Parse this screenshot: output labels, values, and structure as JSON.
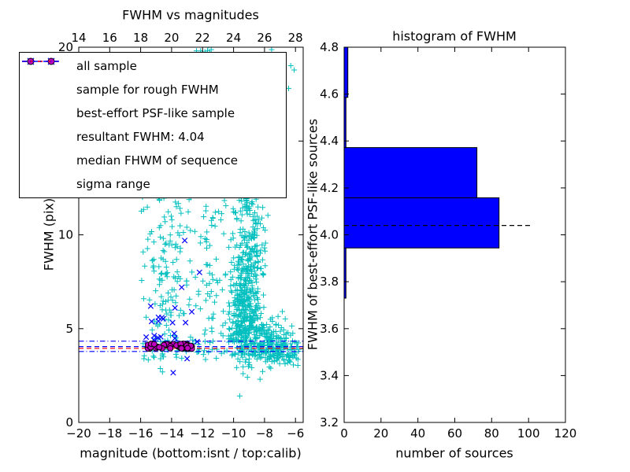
{
  "figure": {
    "background": "#ffffff"
  },
  "chart_data": [
    {
      "type": "scatter",
      "title": "FWHM vs magnitudes",
      "xlabel": "magnitude (bottom:isnt / top:calib)",
      "ylabel": "FWHM (pix)",
      "xlim": [
        -20,
        -5.5
      ],
      "ylim": [
        0,
        20
      ],
      "xticks_bottom": [
        -20,
        -18,
        -16,
        -14,
        -12,
        -10,
        -8,
        -6
      ],
      "xticks_top": [
        14,
        16,
        18,
        20,
        22,
        24,
        26,
        28
      ],
      "top_axis_relation": "calib = isnt + 34",
      "yticks": [
        0,
        5,
        10,
        15,
        20
      ],
      "series": [
        {
          "name": "all sample",
          "marker": "plus",
          "color": "#00bfbf",
          "clusters": [
            {
              "dist": "gauss",
              "cx": -9.3,
              "cy": 6.0,
              "sx": 0.45,
              "sy": 1.4,
              "n": 300
            },
            {
              "dist": "gauss",
              "cx": -9.0,
              "cy": 9.2,
              "sx": 0.55,
              "sy": 1.9,
              "n": 170
            },
            {
              "dist": "gauss",
              "cx": -8.9,
              "cy": 12.2,
              "sx": 0.5,
              "sy": 1.1,
              "n": 55
            },
            {
              "dist": "gauss",
              "cx": -8.2,
              "cy": 4.5,
              "sx": 0.9,
              "sy": 0.7,
              "n": 160
            },
            {
              "dist": "gauss",
              "cx": -7.1,
              "cy": 3.9,
              "sx": 0.8,
              "sy": 0.4,
              "n": 80
            },
            {
              "dist": "uniform",
              "x0": -16.0,
              "x1": -11.3,
              "y0": 3.6,
              "y1": 13.5,
              "n": 110
            },
            {
              "dist": "gauss",
              "cx": -14.35,
              "cy": 7.0,
              "sx": 0.45,
              "sy": 2.2,
              "n": 70
            },
            {
              "dist": "uniform",
              "x0": -13.8,
              "x1": -10.9,
              "y0": 13.5,
              "y1": 19.9,
              "n": 40
            },
            {
              "dist": "gauss",
              "cx": -11.7,
              "cy": 19.4,
              "sx": 0.65,
              "sy": 0.45,
              "n": 18
            },
            {
              "dist": "uniform",
              "x0": -16.1,
              "x1": -6.1,
              "y0": 3.3,
              "y1": 4.5,
              "n": 70
            },
            {
              "dist": "gauss",
              "cx": -10.7,
              "cy": 11.0,
              "sx": 1.1,
              "sy": 2.0,
              "n": 55
            },
            {
              "dist": "uniform",
              "x0": -11.9,
              "x1": -9.9,
              "y0": 4.2,
              "y1": 8.5,
              "n": 45
            },
            {
              "dist": "uniform",
              "x0": -8.6,
              "x1": -6.0,
              "y0": 17.3,
              "y1": 19.9,
              "n": 8
            },
            {
              "dist": "uniform",
              "x0": -7.6,
              "x1": -5.8,
              "y0": 3.0,
              "y1": 4.3,
              "n": 40
            }
          ]
        },
        {
          "name": "sample for rough FWHM",
          "marker": "x",
          "color": "#0000ff",
          "clusters": [
            {
              "dist": "gauss",
              "cx": -14.3,
              "cy": 4.9,
              "sx": 0.8,
              "sy": 0.55,
              "n": 16
            }
          ],
          "points": [
            [
              -13.55,
              12.4
            ],
            [
              -13.15,
              9.7
            ],
            [
              -12.2,
              8.0
            ],
            [
              -13.35,
              7.2
            ],
            [
              -15.35,
              6.2
            ],
            [
              -13.9,
              2.65
            ],
            [
              -12.35,
              4.3
            ],
            [
              -14.85,
              5.6
            ],
            [
              -15.1,
              4.35
            ],
            [
              -12.7,
              5.9
            ],
            [
              -13.0,
              3.4
            ]
          ]
        },
        {
          "name": "best-effort PSF-like sample",
          "marker": "circle",
          "color": "#bf00bf",
          "edge_color": "#000000",
          "clusters": [
            {
              "dist": "uniform",
              "x0": -15.55,
              "x1": -12.6,
              "y0": 3.93,
              "y1": 4.2,
              "n": 48
            }
          ]
        }
      ],
      "hlines": [
        {
          "name": "resultant FWHM",
          "y": 4.04,
          "color": "#0000ff",
          "style": "dashed"
        },
        {
          "name": "median FWHM of sequence",
          "y": 3.95,
          "color": "#ff0000",
          "style": "dashed"
        },
        {
          "name": "sigma range upper",
          "y": 4.33,
          "color": "#0000ff",
          "style": "dashdot"
        },
        {
          "name": "sigma range lower",
          "y": 3.78,
          "color": "#0000ff",
          "style": "dashdot"
        }
      ],
      "legend": [
        {
          "label": "all sample",
          "marker": "plus",
          "color": "#00bfbf"
        },
        {
          "label": "sample for rough FWHM",
          "marker": "x",
          "color": "#0000ff"
        },
        {
          "label": "best-effort PSF-like sample",
          "marker": "circle",
          "color": "#bf00bf"
        },
        {
          "label": "resultant FWHM: 4.04",
          "marker": "dashed",
          "color": "#0000ff"
        },
        {
          "label": "median FHWM of sequence",
          "marker": "dashed",
          "color": "#ff0000"
        },
        {
          "label": "sigma range",
          "marker": "dashdot",
          "color": "#0000ff"
        }
      ]
    },
    {
      "type": "barh",
      "title": "histogram of FWHM",
      "xlabel": "number of sources",
      "ylabel": "FWHM of best-effort PSF-like sources",
      "xlim": [
        0,
        120
      ],
      "ylim": [
        3.2,
        4.8
      ],
      "xticks": [
        0,
        20,
        40,
        60,
        80,
        100,
        120
      ],
      "yticks": [
        3.2,
        3.4,
        3.6,
        3.8,
        4.0,
        4.2,
        4.4,
        4.6,
        4.8
      ],
      "ytick_decimals": 1,
      "bar_color": "#0000ff",
      "bar_edge_color": "#000000",
      "bin_edges": [
        3.73,
        3.944,
        4.158,
        4.372,
        4.586,
        4.8
      ],
      "counts": [
        1,
        84,
        72,
        1,
        2
      ],
      "median_line": {
        "y": 4.04,
        "x_start": 0,
        "x_end": 102,
        "color": "#000000",
        "style": "dashed"
      }
    }
  ]
}
